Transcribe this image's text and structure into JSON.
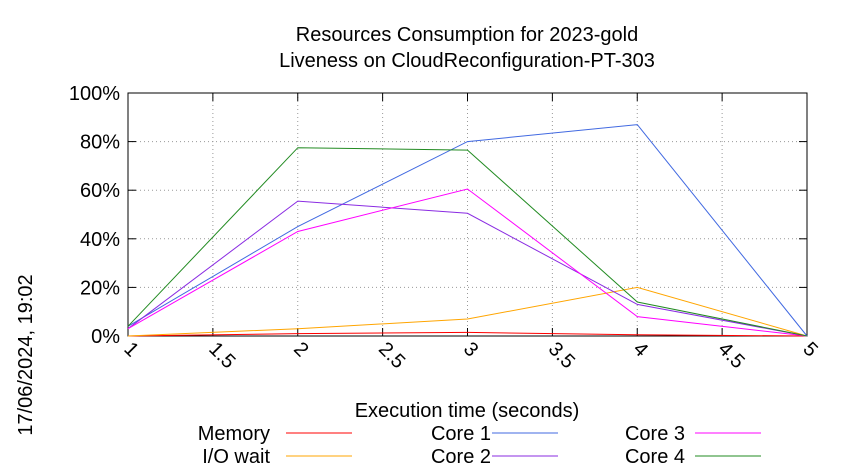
{
  "chart_data": {
    "type": "line",
    "title_line1": "Resources Consumption for 2023-gold",
    "title_line2": "Liveness on CloudReconfiguration-PT-303",
    "xlabel": "Execution time (seconds)",
    "ylabel": "",
    "side_label": "17/06/2024, 19:02",
    "xlim": [
      1,
      5
    ],
    "ylim": [
      0,
      100
    ],
    "x_ticks": [
      "1",
      "1.5",
      "2",
      "2.5",
      "3",
      "3.5",
      "4",
      "4.5",
      "5"
    ],
    "y_ticks": [
      "0%",
      "20%",
      "40%",
      "60%",
      "80%",
      "100%"
    ],
    "grid": true,
    "legend_position": "bottom",
    "x": [
      1,
      2,
      3,
      4,
      5
    ],
    "series": [
      {
        "name": "Memory",
        "color": "#ff0000",
        "values": [
          0,
          1,
          1.5,
          0.5,
          0
        ]
      },
      {
        "name": "I/O wait",
        "color": "#ffa500",
        "values": [
          0,
          3,
          7,
          20,
          0
        ]
      },
      {
        "name": "Core 1",
        "color": "#4169e1",
        "values": [
          4,
          45,
          80,
          87,
          0
        ]
      },
      {
        "name": "Core 2",
        "color": "#8a2be2",
        "values": [
          3,
          55.5,
          50.5,
          13,
          0
        ]
      },
      {
        "name": "Core 3",
        "color": "#ff00ff",
        "values": [
          3,
          43,
          60.5,
          8,
          0
        ]
      },
      {
        "name": "Core 4",
        "color": "#228b22",
        "values": [
          4,
          77.5,
          76.5,
          14,
          0
        ]
      }
    ]
  }
}
